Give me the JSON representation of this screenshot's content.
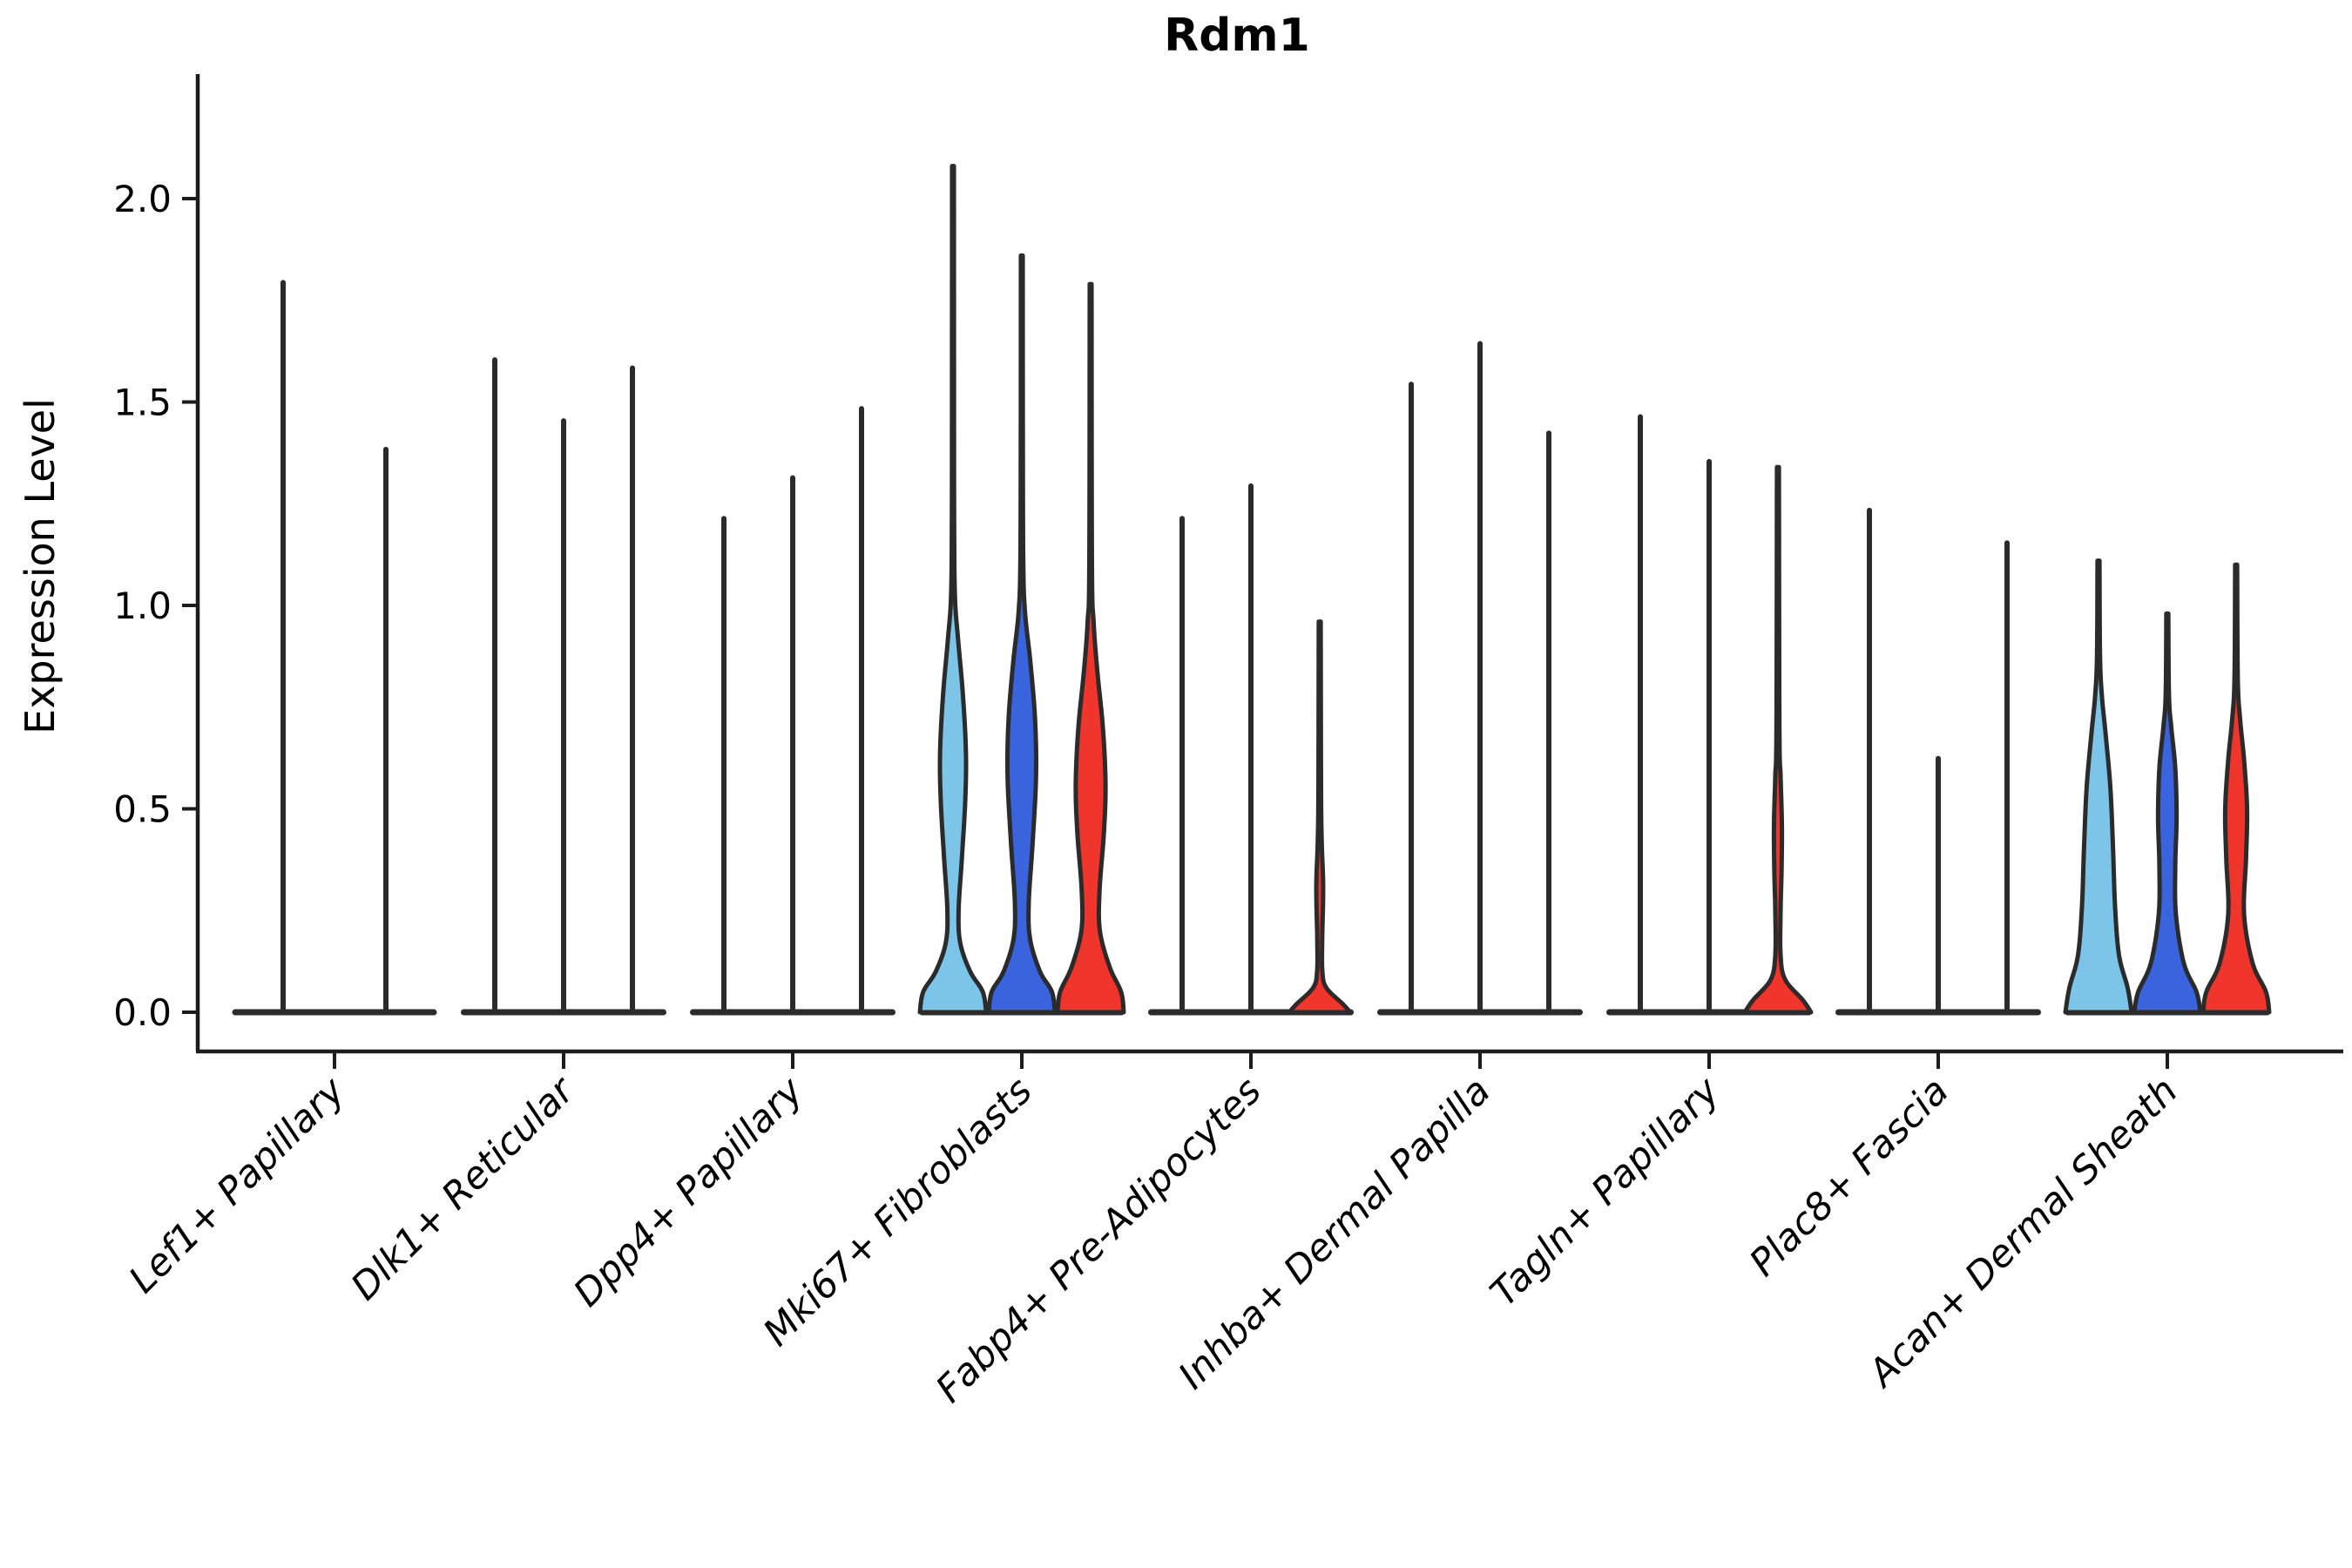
{
  "chart_data": {
    "type": "violin",
    "title": "Rdm1",
    "ylabel": "Expression Level",
    "xlabel": "",
    "ylim": [
      0.0,
      2.2
    ],
    "grid": false,
    "legend": "none",
    "yticks": {
      "values": [
        0.0,
        0.5,
        1.0,
        1.5,
        2.0
      ],
      "labels": [
        "0.0",
        "0.5",
        "1.0",
        "1.5",
        "2.0"
      ]
    },
    "hue_colors": [
      "#7CC4E8",
      "#3A64DD",
      "#F0352C"
    ],
    "outline_color": "#2B2B2B",
    "axis_color": "#1C1C1C",
    "categories": [
      "Lef1+ Papillary",
      "Dlk1+ Reticular",
      "Dpp4+ Papillary",
      "Mki67+ Fibroblasts",
      "Fabp4+ Pre-Adipocytes",
      "Inhba+ Dermal Papilla",
      "Tagln+ Papillary",
      "Plac8+ Fascia",
      "Acan+ Dermal Sheath"
    ],
    "groups": [
      {
        "category": "Lef1+ Papillary",
        "violins": [
          {
            "hue": 0,
            "max": 1.8,
            "shape": "collapsed"
          },
          {
            "hue": 1,
            "max": 1.39,
            "shape": "collapsed"
          }
        ]
      },
      {
        "category": "Dlk1+ Reticular",
        "violins": [
          {
            "hue": 0,
            "max": 1.61,
            "shape": "collapsed"
          },
          {
            "hue": 1,
            "max": 1.46,
            "shape": "collapsed"
          },
          {
            "hue": 2,
            "max": 1.59,
            "shape": "collapsed"
          }
        ]
      },
      {
        "category": "Dpp4+ Papillary",
        "violins": [
          {
            "hue": 0,
            "max": 1.22,
            "shape": "collapsed"
          },
          {
            "hue": 1,
            "max": 1.32,
            "shape": "collapsed"
          },
          {
            "hue": 2,
            "max": 1.49,
            "shape": "collapsed"
          }
        ]
      },
      {
        "category": "Mki67+ Fibroblasts",
        "violins": [
          {
            "hue": 0,
            "max": 2.08,
            "shape": "full",
            "profile": [
              [
                0,
                1.0
              ],
              [
                0.05,
                0.9
              ],
              [
                0.1,
                0.52
              ],
              [
                0.17,
                0.22
              ],
              [
                0.25,
                0.17
              ],
              [
                0.38,
                0.27
              ],
              [
                0.52,
                0.37
              ],
              [
                0.64,
                0.39
              ],
              [
                0.78,
                0.3
              ],
              [
                0.92,
                0.15
              ],
              [
                1.02,
                0.06
              ],
              [
                1.2,
                0.035
              ],
              [
                1.6,
                0.03
              ],
              [
                2.08,
                0.028
              ]
            ]
          },
          {
            "hue": 1,
            "max": 1.86,
            "shape": "full",
            "profile": [
              [
                0,
                1.0
              ],
              [
                0.05,
                0.91
              ],
              [
                0.1,
                0.55
              ],
              [
                0.18,
                0.25
              ],
              [
                0.27,
                0.21
              ],
              [
                0.42,
                0.33
              ],
              [
                0.58,
                0.43
              ],
              [
                0.72,
                0.4
              ],
              [
                0.86,
                0.26
              ],
              [
                0.98,
                0.1
              ],
              [
                1.1,
                0.045
              ],
              [
                1.4,
                0.032
              ],
              [
                1.86,
                0.028
              ]
            ]
          },
          {
            "hue": 2,
            "max": 1.79,
            "shape": "full",
            "profile": [
              [
                0,
                1.0
              ],
              [
                0.05,
                0.92
              ],
              [
                0.11,
                0.58
              ],
              [
                0.2,
                0.28
              ],
              [
                0.3,
                0.27
              ],
              [
                0.44,
                0.4
              ],
              [
                0.56,
                0.45
              ],
              [
                0.7,
                0.37
              ],
              [
                0.84,
                0.2
              ],
              [
                0.96,
                0.09
              ],
              [
                1.1,
                0.04
              ],
              [
                1.79,
                0.028
              ]
            ]
          }
        ]
      },
      {
        "category": "Fabp4+ Pre-Adipocytes",
        "violins": [
          {
            "hue": 0,
            "max": 1.22,
            "shape": "collapsed"
          },
          {
            "hue": 1,
            "max": 1.3,
            "shape": "collapsed"
          },
          {
            "hue": 2,
            "max": 0.96,
            "shape": "full",
            "profile": [
              [
                0,
                0.92
              ],
              [
                0.02,
                0.7
              ],
              [
                0.06,
                0.2
              ],
              [
                0.1,
                0.08
              ],
              [
                0.18,
                0.075
              ],
              [
                0.27,
                0.1
              ],
              [
                0.33,
                0.1
              ],
              [
                0.42,
                0.06
              ],
              [
                0.55,
                0.04
              ],
              [
                0.96,
                0.03
              ]
            ]
          }
        ]
      },
      {
        "category": "Inhba+ Dermal Papilla",
        "violins": [
          {
            "hue": 0,
            "max": 1.55,
            "shape": "collapsed"
          },
          {
            "hue": 1,
            "max": 1.65,
            "shape": "collapsed"
          },
          {
            "hue": 2,
            "max": 1.43,
            "shape": "collapsed"
          }
        ]
      },
      {
        "category": "Tagln+ Papillary",
        "violins": [
          {
            "hue": 0,
            "max": 1.47,
            "shape": "collapsed"
          },
          {
            "hue": 1,
            "max": 1.36,
            "shape": "collapsed"
          },
          {
            "hue": 2,
            "max": 1.34,
            "shape": "full",
            "profile": [
              [
                0,
                1.0
              ],
              [
                0.03,
                0.75
              ],
              [
                0.08,
                0.22
              ],
              [
                0.14,
                0.08
              ],
              [
                0.25,
                0.08
              ],
              [
                0.35,
                0.11
              ],
              [
                0.46,
                0.12
              ],
              [
                0.58,
                0.08
              ],
              [
                0.7,
                0.045
              ],
              [
                1.34,
                0.03
              ]
            ]
          }
        ]
      },
      {
        "category": "Plac8+ Fascia",
        "violins": [
          {
            "hue": 0,
            "max": 1.24,
            "shape": "collapsed"
          },
          {
            "hue": 1,
            "max": 0.63,
            "shape": "collapsed"
          },
          {
            "hue": 2,
            "max": 1.16,
            "shape": "collapsed"
          }
        ]
      },
      {
        "category": "Acan+ Dermal Sheath",
        "violins": [
          {
            "hue": 0,
            "max": 1.11,
            "shape": "full",
            "profile": [
              [
                0,
                1.0
              ],
              [
                0.06,
                0.88
              ],
              [
                0.14,
                0.62
              ],
              [
                0.26,
                0.5
              ],
              [
                0.4,
                0.44
              ],
              [
                0.55,
                0.36
              ],
              [
                0.68,
                0.22
              ],
              [
                0.78,
                0.1
              ],
              [
                0.88,
                0.045
              ],
              [
                1.11,
                0.03
              ]
            ]
          },
          {
            "hue": 1,
            "max": 0.98,
            "shape": "full",
            "profile": [
              [
                0,
                1.0
              ],
              [
                0.05,
                0.88
              ],
              [
                0.12,
                0.5
              ],
              [
                0.24,
                0.26
              ],
              [
                0.36,
                0.24
              ],
              [
                0.48,
                0.28
              ],
              [
                0.6,
                0.24
              ],
              [
                0.7,
                0.12
              ],
              [
                0.78,
                0.05
              ],
              [
                0.98,
                0.03
              ]
            ]
          },
          {
            "hue": 2,
            "max": 1.1,
            "shape": "full",
            "profile": [
              [
                0,
                1.0
              ],
              [
                0.05,
                0.9
              ],
              [
                0.12,
                0.5
              ],
              [
                0.24,
                0.24
              ],
              [
                0.38,
                0.3
              ],
              [
                0.5,
                0.33
              ],
              [
                0.62,
                0.24
              ],
              [
                0.72,
                0.12
              ],
              [
                0.82,
                0.05
              ],
              [
                1.1,
                0.03
              ]
            ]
          }
        ]
      }
    ]
  }
}
